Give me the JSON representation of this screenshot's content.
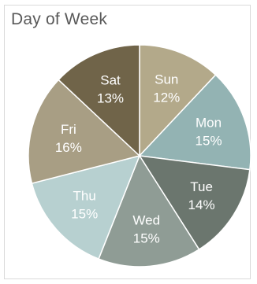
{
  "chart_data": {
    "type": "pie",
    "title": "Day of Week",
    "categories": [
      "Sun",
      "Mon",
      "Tue",
      "Wed",
      "Thu",
      "Fri",
      "Sat"
    ],
    "values": [
      12,
      15,
      14,
      15,
      15,
      16,
      13
    ],
    "value_labels": [
      "12%",
      "15%",
      "14%",
      "15%",
      "15%",
      "16%",
      "13%"
    ],
    "colors": [
      "#b3a98a",
      "#93b3b3",
      "#6b766e",
      "#8f9c95",
      "#b7d0d0",
      "#a89e84",
      "#706449"
    ],
    "legend": "none",
    "data_labels": "category-and-percent-inside"
  }
}
